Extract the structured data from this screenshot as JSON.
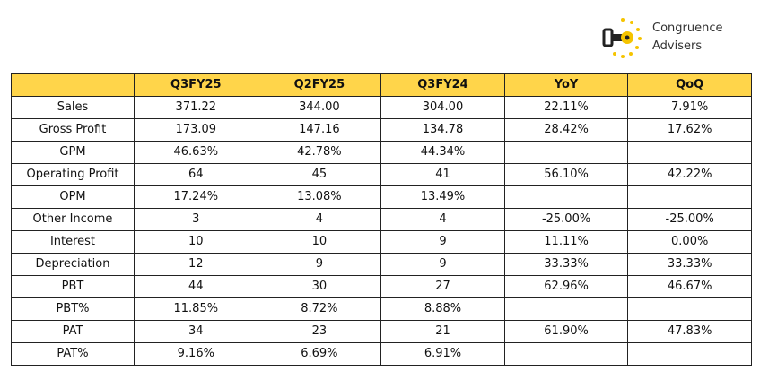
{
  "logo": {
    "line1": "Congruence",
    "line2": "Advisers",
    "colors": {
      "accent": "#F5C400",
      "mark": "#222222"
    }
  },
  "colors": {
    "header_bg": "#FFD54A",
    "border": "#222222"
  },
  "table": {
    "headers": [
      "",
      "Q3FY25",
      "Q2FY25",
      "Q3FY24",
      "YoY",
      "QoQ"
    ],
    "rows": [
      [
        "Sales",
        "371.22",
        "344.00",
        "304.00",
        "22.11%",
        "7.91%"
      ],
      [
        "Gross Profit",
        "173.09",
        "147.16",
        "134.78",
        "28.42%",
        "17.62%"
      ],
      [
        "GPM",
        "46.63%",
        "42.78%",
        "44.34%",
        "",
        ""
      ],
      [
        "Operating Profit",
        "64",
        "45",
        "41",
        "56.10%",
        "42.22%"
      ],
      [
        "OPM",
        "17.24%",
        "13.08%",
        "13.49%",
        "",
        ""
      ],
      [
        "Other Income",
        "3",
        "4",
        "4",
        "-25.00%",
        "-25.00%"
      ],
      [
        "Interest",
        "10",
        "10",
        "9",
        "11.11%",
        "0.00%"
      ],
      [
        "Depreciation",
        "12",
        "9",
        "9",
        "33.33%",
        "33.33%"
      ],
      [
        "PBT",
        "44",
        "30",
        "27",
        "62.96%",
        "46.67%"
      ],
      [
        "PBT%",
        "11.85%",
        "8.72%",
        "8.88%",
        "",
        ""
      ],
      [
        "PAT",
        "34",
        "23",
        "21",
        "61.90%",
        "47.83%"
      ],
      [
        "PAT%",
        "9.16%",
        "6.69%",
        "6.91%",
        "",
        ""
      ]
    ]
  }
}
